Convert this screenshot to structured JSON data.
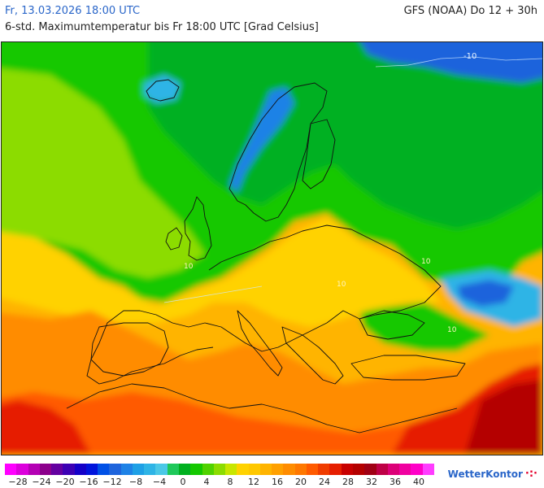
{
  "header": {
    "date": "Fr, 13.03.2026 18:00 UTC",
    "model": "GFS (NOAA) Do 12 + 30h",
    "subtitle": "6-std. Maximumtemperatur bis Fr 18:00 UTC [Grad Celsius]"
  },
  "map": {
    "contour_labels": [
      "-10",
      "10",
      "10",
      "10",
      "10"
    ],
    "colors": {
      "water_blue": "#1e64dc",
      "cyan": "#2eb4e6",
      "green_dark": "#00b020",
      "green": "#14c800",
      "lime": "#8cdc00",
      "yellow": "#ffd200",
      "amber": "#ffb400",
      "orange": "#ff8c00",
      "red_orange": "#ff5a00",
      "red": "#e61e00",
      "dark_red": "#b40000"
    }
  },
  "legend": {
    "colors": [
      "#ff00ff",
      "#dc00dc",
      "#b400b4",
      "#8c008c",
      "#6400a0",
      "#3c00b4",
      "#1400c8",
      "#0014dc",
      "#0050e6",
      "#1e64dc",
      "#1e82e6",
      "#1ea0e6",
      "#2eb4e6",
      "#4bc8e6",
      "#1ec85a",
      "#00b020",
      "#14c800",
      "#50d200",
      "#8cdc00",
      "#c8e600",
      "#ffd200",
      "#ffc800",
      "#ffb400",
      "#ffa000",
      "#ff8c00",
      "#ff7800",
      "#ff5a00",
      "#f03c00",
      "#e61e00",
      "#c80000",
      "#b40000",
      "#a00014",
      "#be0046",
      "#dc0078",
      "#f000a0",
      "#ff00c8",
      "#ff3cff"
    ],
    "ticks": [
      "−28",
      "−24",
      "−20",
      "−16",
      "−12",
      "−8",
      "−4",
      "0",
      "4",
      "8",
      "12",
      "16",
      "20",
      "24",
      "28",
      "32",
      "36",
      "40"
    ]
  },
  "brand": {
    "name": "WetterKontor",
    "mark": "·:·"
  }
}
